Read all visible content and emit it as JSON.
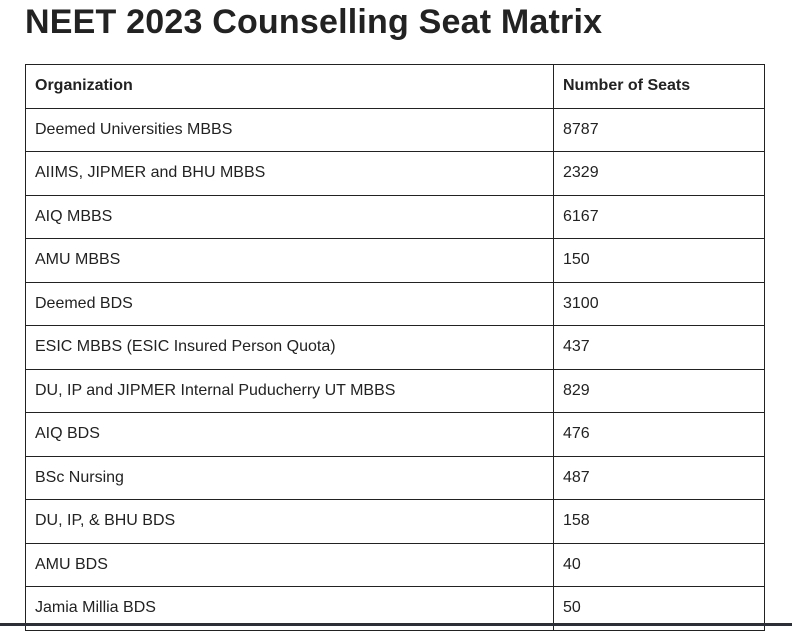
{
  "header": {
    "title": "NEET 2023 Counselling Seat Matrix"
  },
  "table": {
    "columns": [
      "Organization",
      "Number of Seats"
    ],
    "rows": [
      [
        "Deemed Universities MBBS",
        8787
      ],
      [
        "AIIMS, JIPMER and BHU MBBS",
        2329
      ],
      [
        "AIQ MBBS",
        6167
      ],
      [
        "AMU MBBS",
        150
      ],
      [
        "Deemed BDS",
        3100
      ],
      [
        "ESIC MBBS (ESIC Insured Person Quota)",
        437
      ],
      [
        "DU, IP and JIPMER Internal Puducherry UT MBBS",
        829
      ],
      [
        "AIQ BDS",
        476
      ],
      [
        "BSc Nursing",
        487
      ],
      [
        "DU, IP, & BHU BDS",
        158
      ],
      [
        "AMU BDS",
        40
      ],
      [
        "Jamia Millia BDS",
        50
      ]
    ]
  }
}
